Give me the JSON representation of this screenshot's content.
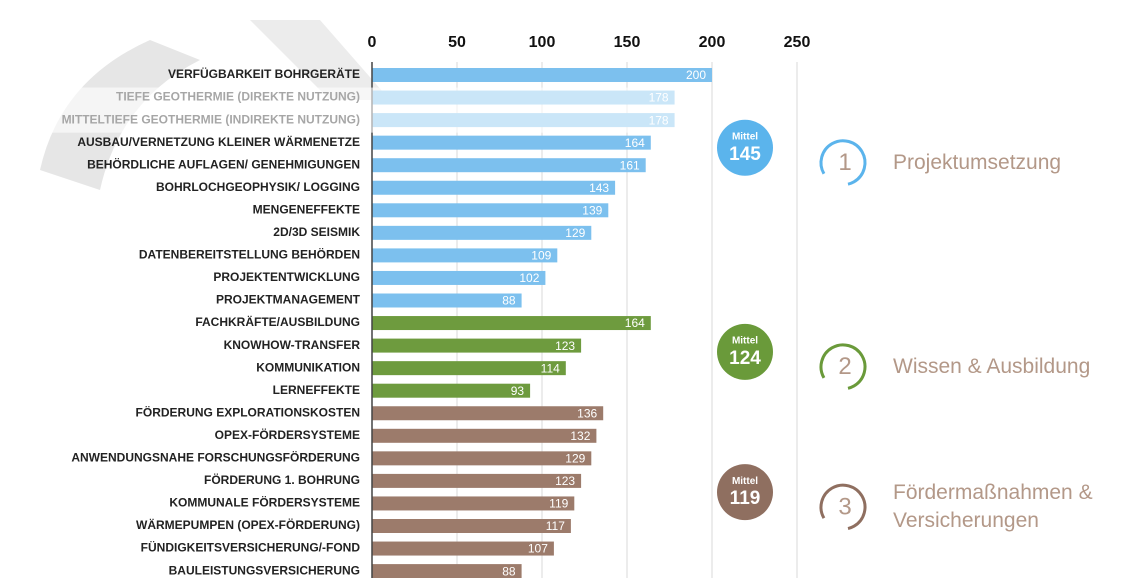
{
  "chart_data": {
    "type": "bar",
    "orientation": "horizontal",
    "categories": [
      "VERFÜGBARKEIT BOHRGERÄTE",
      "TIEFE GEOTHERMIE (DIREKTE NUTZUNG)",
      "MITTELTIEFE GEOTHERMIE (INDIREKTE NUTZUNG)",
      "AUSBAU/VERNETZUNG KLEINER WÄRMENETZE",
      "BEHÖRDLICHE AUFLAGEN/ GENEHMIGUNGEN",
      "BOHRLOCHGEOPHYSIK/ LOGGING",
      "MENGENEFFEKTE",
      "2D/3D SEISMIK",
      "DATENBEREITSTELLUNG BEHÖRDEN",
      "PROJEKTENTWICKLUNG",
      "PROJEKTMANAGEMENT",
      "FACHKRÄFTE/AUSBILDUNG",
      "KNOWHOW-TRANSFER",
      "KOMMUNIKATION",
      "LERNEFFEKTE",
      "FÖRDERUNG EXPLORATIONSKOSTEN",
      "OPEX-FÖRDERSYSTEME",
      "ANWENDUNGSNAHE  FORSCHUNGSFÖRDERUNG",
      "FÖRDERUNG 1. BOHRUNG",
      "KOMMUNALE FÖRDERSYSTEME",
      "WÄRMEPUMPEN (OPEX-FÖRDERUNG)",
      "FÜNDIGKEITSVERSICHERUNG/-FOND",
      "BAULEISTUNGSVERSICHERUNG"
    ],
    "series": [
      {
        "name": "Projektumsetzung",
        "number": "1",
        "mean_label": "Mittel",
        "mean": 145,
        "color": "#7cc0ee",
        "mean_color": "#5bb4ec",
        "values": [
          200,
          178,
          178,
          164,
          161,
          143,
          139,
          129,
          109,
          102,
          88,
          null,
          null,
          null,
          null,
          null,
          null,
          null,
          null,
          null,
          null,
          null,
          null
        ]
      },
      {
        "name": "Wissen & Ausbildung",
        "number": "2",
        "mean_label": "Mittel",
        "mean": 124,
        "color": "#6e9b3e",
        "mean_color": "#6a9a3a",
        "values": [
          null,
          null,
          null,
          null,
          null,
          null,
          null,
          null,
          null,
          null,
          null,
          164,
          123,
          114,
          93,
          null,
          null,
          null,
          null,
          null,
          null,
          null,
          null
        ]
      },
      {
        "name": "Fördermaßnahmen & Versicherungen",
        "number": "3",
        "mean_label": "Mittel",
        "mean": 119,
        "color": "#9c7b6b",
        "mean_color": "#8f6f60",
        "values": [
          null,
          null,
          null,
          null,
          null,
          null,
          null,
          null,
          null,
          null,
          null,
          null,
          null,
          null,
          null,
          136,
          132,
          129,
          123,
          119,
          117,
          107,
          88
        ]
      }
    ],
    "xlim": [
      0,
      250
    ],
    "xticks": [
      0,
      50,
      100,
      150,
      200,
      250
    ],
    "grid": true
  }
}
